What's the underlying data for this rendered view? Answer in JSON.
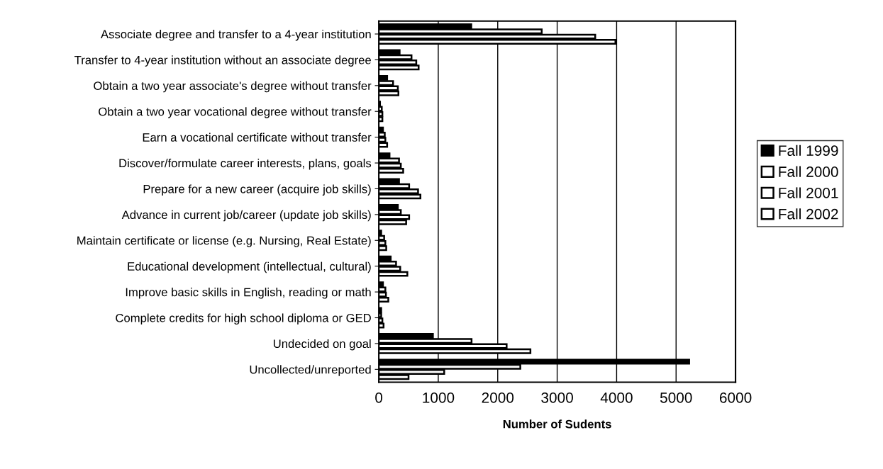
{
  "chart_data": {
    "type": "bar",
    "orientation": "horizontal",
    "xlabel": "Number of Sudents",
    "categories": [
      "Associate degree and transfer to a 4-year institution",
      "Transfer to 4-year institution without an associate degree",
      "Obtain a two year associate's degree without transfer",
      "Obtain a two year vocational degree without transfer",
      "Earn a vocational certificate without transfer",
      "Discover/formulate career interests, plans, goals",
      "Prepare for a new career (acquire job skills)",
      "Advance in current job/career (update job skills)",
      "Maintain certificate or license (e.g. Nursing, Real Estate)",
      "Educational development (intellectual, cultural)",
      "Improve basic skills in English, reading or math",
      "Complete credits for high school diploma or GED",
      "Undecided on goal",
      "Uncollected/unreported"
    ],
    "series": [
      {
        "name": "Fall 1999",
        "color": "#000000",
        "values": [
          1555,
          350,
          140,
          20,
          70,
          180,
          340,
          320,
          40,
          200,
          70,
          40,
          910,
          5220
        ]
      },
      {
        "name": "Fall 2000",
        "color": "#ffffff",
        "values": [
          2740,
          550,
          240,
          50,
          100,
          340,
          510,
          370,
          90,
          290,
          110,
          40,
          1560,
          2380
        ]
      },
      {
        "name": "Fall 2001",
        "color": "#ffffff",
        "values": [
          3640,
          630,
          320,
          60,
          110,
          370,
          660,
          510,
          110,
          360,
          120,
          60,
          2150,
          1100
        ]
      },
      {
        "name": "Fall 2002",
        "color": "#ffffff",
        "values": [
          3980,
          670,
          330,
          60,
          140,
          410,
          700,
          460,
          125,
          480,
          160,
          80,
          2550,
          500
        ]
      }
    ],
    "xlim": [
      0,
      6000
    ],
    "xticks": [
      0,
      1000,
      2000,
      3000,
      4000,
      5000,
      6000
    ],
    "grid": "x",
    "legend": "right"
  }
}
